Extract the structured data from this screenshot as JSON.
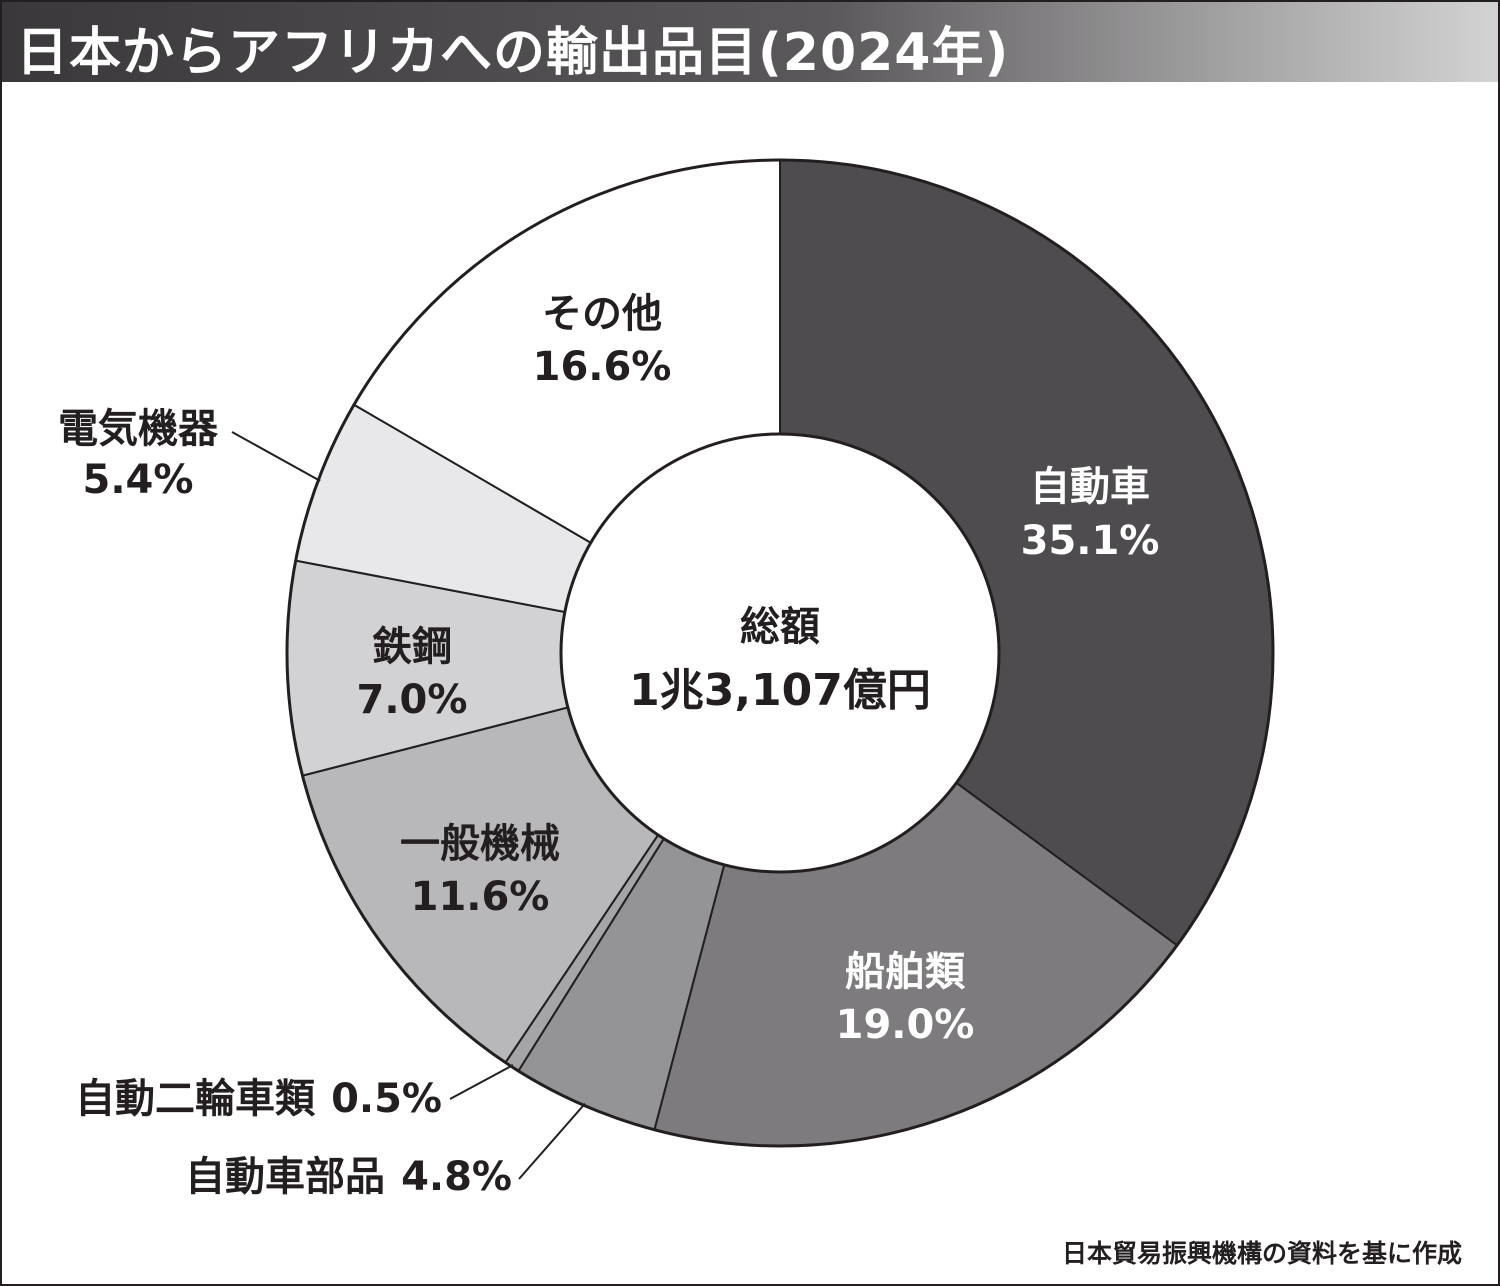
{
  "title": "日本からアフリカへの輸出品目(2024年)",
  "source": "日本貿易振興機構の資料を基に作成",
  "colors": {
    "title_bg": "#4a484a",
    "outline": "#231f20"
  },
  "chart_data": {
    "type": "pie",
    "variant": "donut",
    "title": "日本からアフリカへの輸出品目(2024年)",
    "center_label": "総額",
    "center_value": "1兆3,107億円",
    "slices": [
      {
        "label": "自動車",
        "value": 35.1,
        "value_text": "35.1%",
        "color": "#4f4c50"
      },
      {
        "label": "船舶類",
        "value": 19.0,
        "value_text": "19.0%",
        "color": "#7d7b7e"
      },
      {
        "label": "自動車部品",
        "value": 4.8,
        "value_text": "4.8%",
        "color": "#949395"
      },
      {
        "label": "自動二輪車類",
        "value": 0.5,
        "value_text": "0.5%",
        "color": "#a5a4a6"
      },
      {
        "label": "一般機械",
        "value": 11.6,
        "value_text": "11.6%",
        "color": "#b8b7b9"
      },
      {
        "label": "鉄鋼",
        "value": 7.0,
        "value_text": "7.0%",
        "color": "#d2d1d3"
      },
      {
        "label": "電気機器",
        "value": 5.4,
        "value_text": "5.4%",
        "color": "#e8e7e9"
      },
      {
        "label": "その他",
        "value": 16.6,
        "value_text": "16.6%",
        "color": "#ffffff"
      }
    ]
  }
}
